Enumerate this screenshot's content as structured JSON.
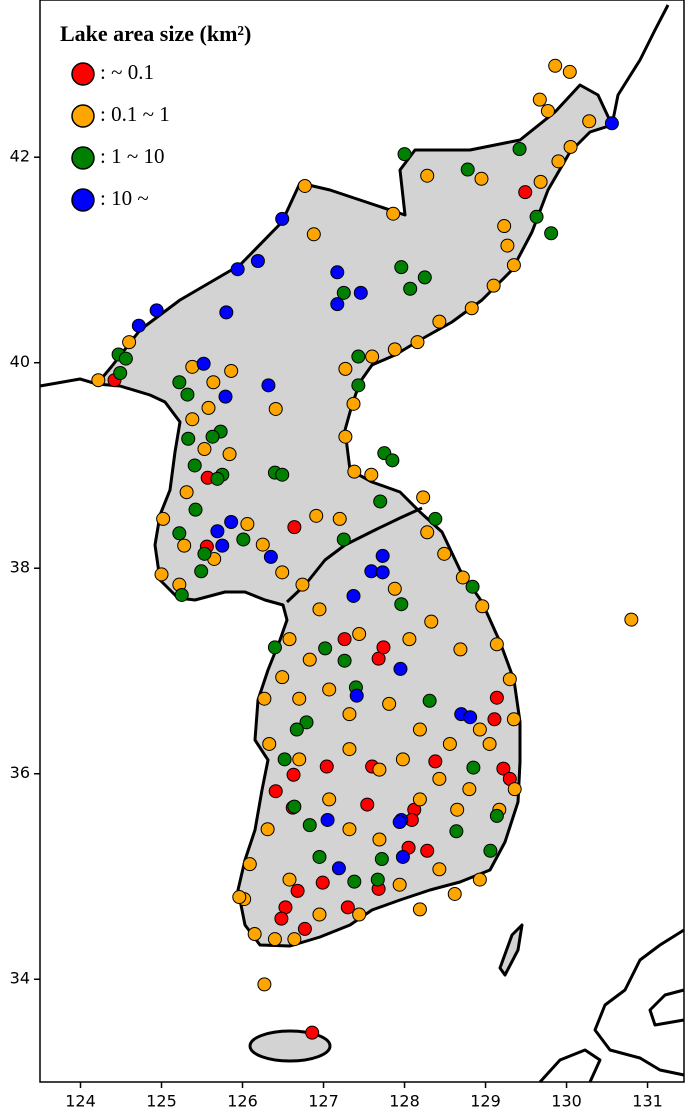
{
  "chart_data": {
    "type": "scatter",
    "legend_title": "Lake area size (km²)",
    "xlim": [
      123.5,
      131.45
    ],
    "ylim": [
      33.0,
      43.53
    ],
    "xticks": [
      124,
      125,
      126,
      127,
      128,
      129,
      130,
      131
    ],
    "yticks": [
      34,
      36,
      38,
      40,
      42
    ],
    "series": [
      {
        "name": ":  ~ 0.1",
        "color": "#ff0000",
        "x": [
          124.42,
          129.49,
          125.57,
          126.64,
          125.56,
          127.26,
          127.68,
          127.74,
          129.14,
          129.11,
          127.6,
          127.04,
          126.63,
          126.41,
          126.62,
          126.99,
          127.54,
          128.12,
          128.09,
          128.05,
          128.28,
          128.38,
          129.22,
          129.3,
          126.86,
          126.68,
          126.53,
          126.77,
          126.48,
          127.68,
          127.3
        ],
        "values": [
          39.83,
          41.66,
          38.88,
          38.4,
          38.21,
          37.31,
          37.12,
          37.23,
          36.74,
          36.53,
          36.07,
          36.07,
          35.99,
          35.83,
          35.67,
          34.94,
          35.7,
          35.65,
          35.55,
          35.28,
          35.25,
          36.12,
          36.05,
          35.95,
          33.48,
          34.86,
          34.7,
          34.49,
          34.59,
          34.88,
          34.7
        ]
      },
      {
        "name": ":  0.1 ~ 1",
        "color": "#ffa500",
        "x": [
          129.86,
          130.04,
          129.77,
          129.9,
          130.05,
          129.68,
          128.28,
          128.95,
          129.23,
          129.27,
          129.35,
          129.1,
          128.83,
          128.43,
          128.16,
          127.88,
          127.6,
          129.67,
          130.28,
          126.77,
          126.88,
          127.86,
          124.22,
          124.6,
          125.38,
          125.64,
          125.86,
          125.58,
          125.38,
          125.53,
          125.84,
          125.31,
          125.02,
          125.28,
          125.0,
          125.22,
          125.65,
          126.06,
          126.25,
          126.49,
          126.74,
          126.41,
          127.27,
          127.37,
          127.27,
          127.38,
          127.59,
          126.91,
          127.2,
          128.23,
          128.28,
          128.49,
          128.72,
          128.96,
          129.14,
          129.3,
          129.35,
          127.88,
          128.33,
          128.69,
          130.8,
          126.49,
          126.27,
          126.7,
          127.07,
          126.83,
          126.58,
          126.95,
          127.32,
          127.81,
          128.19,
          128.56,
          128.93,
          128.43,
          128.8,
          129.17,
          128.19,
          127.69,
          127.32,
          127.07,
          126.7,
          126.33,
          126.31,
          126.09,
          126.02,
          126.15,
          126.4,
          126.95,
          127.44,
          127.94,
          128.43,
          128.93,
          128.62,
          126.27,
          125.96,
          126.64,
          127.69,
          127.32,
          127.98,
          128.65,
          129.36,
          129.05,
          127.44,
          128.06,
          126.58,
          128.19
        ],
        "values": [
          42.89,
          42.83,
          42.45,
          41.96,
          42.1,
          41.76,
          41.82,
          41.79,
          41.33,
          41.14,
          40.95,
          40.75,
          40.53,
          40.4,
          40.2,
          40.13,
          40.06,
          42.56,
          42.35,
          41.72,
          41.25,
          41.45,
          39.83,
          40.2,
          39.96,
          39.81,
          39.92,
          39.56,
          39.45,
          39.16,
          39.11,
          38.74,
          38.48,
          38.22,
          37.94,
          37.84,
          38.09,
          38.43,
          38.23,
          37.96,
          37.84,
          39.55,
          39.94,
          39.6,
          39.28,
          38.94,
          38.91,
          38.51,
          38.48,
          38.69,
          38.35,
          38.14,
          37.91,
          37.63,
          37.26,
          36.92,
          36.53,
          37.8,
          37.48,
          37.21,
          37.5,
          36.94,
          36.73,
          36.73,
          36.82,
          37.11,
          37.31,
          37.6,
          36.58,
          36.68,
          36.43,
          36.29,
          36.43,
          35.95,
          35.85,
          35.65,
          35.75,
          35.36,
          35.46,
          35.75,
          36.14,
          36.29,
          35.46,
          35.12,
          34.78,
          34.44,
          34.39,
          34.63,
          34.63,
          34.92,
          35.07,
          34.97,
          34.83,
          33.95,
          34.8,
          34.39,
          36.04,
          36.24,
          36.14,
          35.65,
          35.85,
          36.29,
          37.36,
          37.31,
          34.97,
          34.68
        ]
      },
      {
        "name": ":  1 ~ 10",
        "color": "#008000",
        "x": [
          128.0,
          128.78,
          129.42,
          129.63,
          129.81,
          127.96,
          128.07,
          128.25,
          127.25,
          124.47,
          124.56,
          124.49,
          125.22,
          125.32,
          127.43,
          127.43,
          125.73,
          125.63,
          125.33,
          125.41,
          125.75,
          126.4,
          126.49,
          125.69,
          125.42,
          125.22,
          125.53,
          126.01,
          125.49,
          125.25,
          127.75,
          127.85,
          127.7,
          128.38,
          127.25,
          127.96,
          128.84,
          126.4,
          127.02,
          127.26,
          127.4,
          126.79,
          128.31,
          128.85,
          126.64,
          126.83,
          126.95,
          127.38,
          127.72,
          129.14,
          129.06,
          128.64,
          126.67,
          126.52,
          127.67
        ],
        "values": [
          42.03,
          41.88,
          42.08,
          41.42,
          41.26,
          40.93,
          40.72,
          40.83,
          40.68,
          40.08,
          40.04,
          39.9,
          39.81,
          39.69,
          40.06,
          39.78,
          39.33,
          39.28,
          39.26,
          39.0,
          38.91,
          38.93,
          38.91,
          38.87,
          38.57,
          38.34,
          38.14,
          38.28,
          37.97,
          37.74,
          39.12,
          39.05,
          38.65,
          38.48,
          38.28,
          37.65,
          37.82,
          37.23,
          37.22,
          37.1,
          36.84,
          36.5,
          36.71,
          36.06,
          35.68,
          35.5,
          35.19,
          34.95,
          35.17,
          35.59,
          35.25,
          35.44,
          36.43,
          36.14,
          34.97
        ]
      },
      {
        "name": ":  10 ~",
        "color": "#0000ff",
        "x": [
          130.56,
          126.49,
          126.19,
          125.94,
          127.17,
          127.17,
          127.46,
          125.8,
          124.94,
          124.72,
          125.52,
          126.32,
          125.79,
          125.86,
          125.69,
          125.75,
          126.35,
          127.73,
          127.59,
          127.73,
          127.37,
          127.95,
          127.41,
          128.7,
          128.81,
          127.05,
          127.96,
          127.98,
          127.19,
          127.94
        ],
        "values": [
          42.33,
          41.4,
          40.99,
          40.91,
          40.88,
          40.57,
          40.68,
          40.49,
          40.51,
          40.36,
          39.99,
          39.78,
          39.67,
          38.45,
          38.36,
          38.22,
          38.11,
          38.12,
          37.97,
          37.96,
          37.73,
          37.02,
          36.76,
          36.58,
          36.55,
          35.55,
          35.55,
          35.19,
          35.08,
          35.53
        ]
      }
    ]
  }
}
